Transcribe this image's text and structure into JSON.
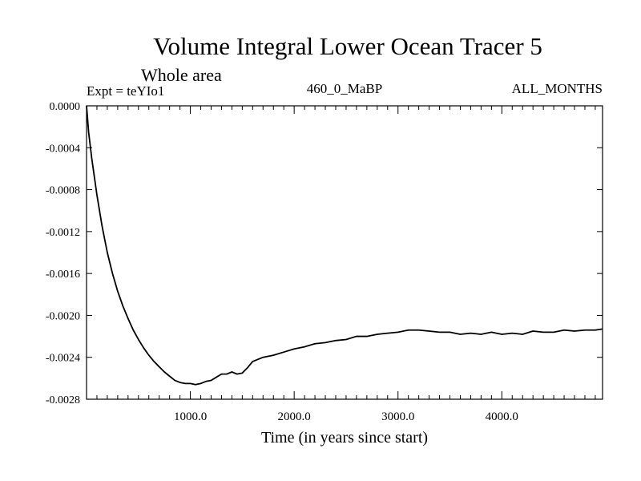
{
  "chart_data": {
    "type": "line",
    "title": "Volume Integral Lower Ocean Tracer 5",
    "subtitle": "Whole area",
    "experiment_label": "Expt = teYIo1",
    "period_label": "460_0_MaBP",
    "months_label": "ALL_MONTHS",
    "xlabel": "Time (in years since start)",
    "ylabel": "",
    "xlim": [
      0,
      4970
    ],
    "ylim": [
      -0.0028,
      0.0
    ],
    "x_ticks": [
      {
        "value": 1000,
        "label": "1000.0"
      },
      {
        "value": 2000,
        "label": "2000.0"
      },
      {
        "value": 3000,
        "label": "3000.0"
      },
      {
        "value": 4000,
        "label": "4000.0"
      }
    ],
    "y_ticks": [
      {
        "value": 0.0,
        "label": "0.0000"
      },
      {
        "value": -0.0004,
        "label": "-0.0004"
      },
      {
        "value": -0.0008,
        "label": "-0.0008"
      },
      {
        "value": -0.0012,
        "label": "-0.0012"
      },
      {
        "value": -0.0016,
        "label": "-0.0016"
      },
      {
        "value": -0.002,
        "label": "-0.0020"
      },
      {
        "value": -0.0024,
        "label": "-0.0024"
      },
      {
        "value": -0.0028,
        "label": "-0.0028"
      }
    ],
    "grid": false,
    "series": [
      {
        "name": "Lower Ocean Tracer 5",
        "color": "#000000",
        "x": [
          0,
          20,
          50,
          100,
          150,
          200,
          250,
          300,
          350,
          400,
          450,
          500,
          550,
          600,
          650,
          700,
          750,
          800,
          850,
          900,
          950,
          1000,
          1050,
          1100,
          1150,
          1200,
          1250,
          1300,
          1350,
          1400,
          1450,
          1500,
          1550,
          1600,
          1700,
          1800,
          1900,
          2000,
          2100,
          2200,
          2300,
          2400,
          2500,
          2600,
          2700,
          2800,
          2900,
          3000,
          3100,
          3200,
          3300,
          3400,
          3500,
          3600,
          3700,
          3800,
          3900,
          4000,
          4100,
          4200,
          4300,
          4400,
          4500,
          4600,
          4700,
          4800,
          4900,
          4970
        ],
        "y": [
          0.0,
          -0.00025,
          -0.0005,
          -0.00085,
          -0.00115,
          -0.0014,
          -0.0016,
          -0.00177,
          -0.00191,
          -0.00203,
          -0.00214,
          -0.00223,
          -0.00231,
          -0.00238,
          -0.00244,
          -0.00249,
          -0.00254,
          -0.00258,
          -0.00262,
          -0.00264,
          -0.00265,
          -0.00265,
          -0.00266,
          -0.00265,
          -0.00263,
          -0.00262,
          -0.00259,
          -0.00256,
          -0.00256,
          -0.00254,
          -0.00256,
          -0.00255,
          -0.0025,
          -0.00244,
          -0.0024,
          -0.00238,
          -0.00235,
          -0.00232,
          -0.0023,
          -0.00227,
          -0.00226,
          -0.00224,
          -0.00223,
          -0.0022,
          -0.0022,
          -0.00218,
          -0.00217,
          -0.00216,
          -0.00214,
          -0.00214,
          -0.00215,
          -0.00216,
          -0.00216,
          -0.00218,
          -0.00217,
          -0.00218,
          -0.00216,
          -0.00218,
          -0.00217,
          -0.00218,
          -0.00215,
          -0.00216,
          -0.00216,
          -0.00214,
          -0.00215,
          -0.00214,
          -0.00214,
          -0.00213
        ]
      }
    ]
  }
}
